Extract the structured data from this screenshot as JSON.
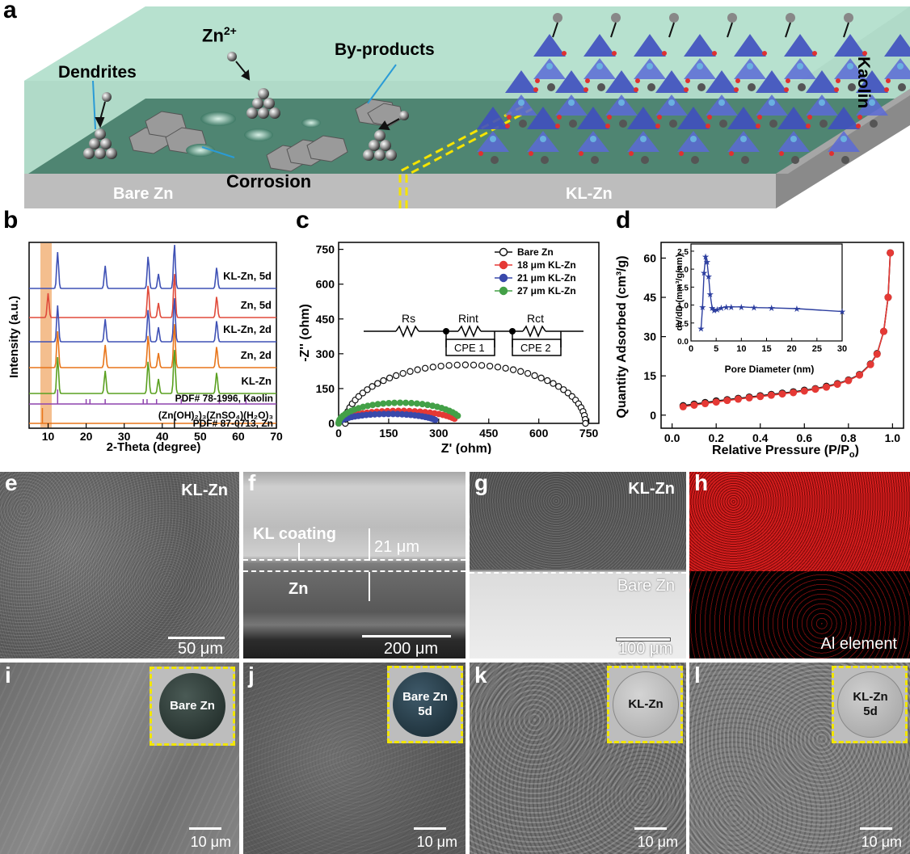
{
  "panel_a": {
    "letter": "a",
    "labels": {
      "zn_ion": "Zn",
      "zn_charge": "2+",
      "dendrites": "Dendrites",
      "byproducts": "By-products",
      "corrosion": "Corrosion",
      "bare_zn": "Bare Zn",
      "kl_zn": "KL-Zn",
      "kaolin": "Kaolin"
    }
  },
  "panel_b": {
    "letter": "b",
    "ylabel": "Intensity (a.u.)",
    "xlabel": "2-Theta (degree)",
    "xticks": [
      "10",
      "20",
      "30",
      "40",
      "50",
      "60",
      "70"
    ],
    "traces": [
      {
        "name": "KL-Zn, 5d",
        "color": "#3f51b5"
      },
      {
        "name": "Zn, 5d",
        "color": "#e04a3a"
      },
      {
        "name": "KL-Zn, 2d",
        "color": "#3f51b5"
      },
      {
        "name": "Zn, 2d",
        "color": "#e8751a"
      },
      {
        "name": "KL-Zn",
        "color": "#5aa020"
      }
    ],
    "refs": [
      {
        "name": "PDF# 78-1996, Kaolin",
        "color": "#8e44ad"
      },
      {
        "name": "(Zn(OH)₂)₃(ZnSO₄)(H₂O)₃",
        "color": "#e8751a"
      },
      {
        "name": "PDF# 87-0713, Zn",
        "color": "#e8751a"
      }
    ]
  },
  "panel_c": {
    "letter": "c",
    "ylabel": "-Z'' (ohm)",
    "xlabel": "Z' (ohm)",
    "xticks": [
      "0",
      "150",
      "300",
      "450",
      "600",
      "750"
    ],
    "yticks": [
      "0",
      "150",
      "300",
      "450",
      "600",
      "750"
    ],
    "legend": [
      "Bare Zn",
      "18 μm KL-Zn",
      "21 μm KL-Zn",
      "27 μm KL-Zn"
    ],
    "circuit": {
      "rs": "Rs",
      "rint": "Rint",
      "rct": "Rct",
      "cpe1": "CPE 1",
      "cpe2": "CPE 2"
    }
  },
  "panel_d": {
    "letter": "d",
    "ylabel": "Quantity Adsorbed (cm³/g)",
    "xlabel": "Relative Pressure (P/P",
    "xlabel_sub": "o",
    "xlabel_end": ")",
    "xticks": [
      "0.0",
      "0.2",
      "0.4",
      "0.6",
      "0.8",
      "1.0"
    ],
    "yticks": [
      "0",
      "15",
      "30",
      "45",
      "60"
    ],
    "inset": {
      "ylabel": "dV/dD (mm³/g/nm)",
      "xlabel": "Pore Diameter (nm)",
      "xticks": [
        "0",
        "5",
        "10",
        "15",
        "20",
        "25",
        "30"
      ],
      "yticks": [
        "0.0",
        "0.5",
        "1.0",
        "1.5",
        "2.0",
        "2.5"
      ]
    }
  },
  "chart_data": [
    {
      "type": "line",
      "panel": "b",
      "xlabel": "2-Theta (degree)",
      "ylabel": "Intensity (a.u.)",
      "xlim": [
        5,
        70
      ],
      "series": [
        {
          "name": "KL-Zn, 5d",
          "peaks": [
            12.5,
            25,
            36.3,
            39,
            43.2,
            54.3
          ]
        },
        {
          "name": "Zn, 5d",
          "peaks": [
            10,
            36.3,
            39,
            43.2,
            54.3
          ]
        },
        {
          "name": "KL-Zn, 2d",
          "peaks": [
            12.5,
            25,
            36.3,
            39,
            43.2,
            54.3
          ]
        },
        {
          "name": "Zn, 2d",
          "peaks": [
            12.5,
            25,
            36.3,
            39,
            43.2,
            54.3
          ]
        },
        {
          "name": "KL-Zn",
          "peaks": [
            12.5,
            25,
            36.3,
            39,
            43.2,
            54.3
          ]
        }
      ]
    },
    {
      "type": "scatter",
      "panel": "c",
      "xlabel": "Z' (ohm)",
      "ylabel": "-Z'' (ohm)",
      "xlim": [
        0,
        780
      ],
      "ylim": [
        0,
        780
      ],
      "series": [
        {
          "name": "Bare Zn",
          "color": "#111111",
          "center": 380,
          "radius": 360,
          "yscale": 0.7,
          "end": 740
        },
        {
          "name": "18 μm KL-Zn",
          "color": "#e53935",
          "center": 180,
          "radius": 180,
          "yscale": 0.3,
          "end": 360
        },
        {
          "name": "21 μm KL-Zn",
          "color": "#3949ab",
          "center": 150,
          "radius": 150,
          "yscale": 0.27,
          "end": 300
        },
        {
          "name": "27 μm KL-Zn",
          "color": "#43a047",
          "center": 185,
          "radius": 185,
          "yscale": 0.48,
          "end": 370
        }
      ]
    },
    {
      "type": "line",
      "panel": "d",
      "xlabel": "Relative Pressure (P/Po)",
      "ylabel": "Quantity Adsorbed (cm³/g)",
      "xlim": [
        -0.05,
        1.05
      ],
      "ylim": [
        -5,
        66
      ],
      "series": [
        {
          "name": "adsorption",
          "color": "#111111",
          "x": [
            0.05,
            0.1,
            0.15,
            0.2,
            0.25,
            0.3,
            0.35,
            0.4,
            0.45,
            0.5,
            0.55,
            0.6,
            0.65,
            0.7,
            0.75,
            0.8,
            0.85,
            0.9,
            0.93,
            0.96,
            0.98,
            0.99
          ],
          "y": [
            3.6,
            4.2,
            4.8,
            5.4,
            5.9,
            6.4,
            6.9,
            7.4,
            7.9,
            8.4,
            8.9,
            9.5,
            10.1,
            11.0,
            12.0,
            13.4,
            15.5,
            19.5,
            23.5,
            32,
            45,
            62
          ]
        },
        {
          "name": "desorption",
          "color": "#e53935",
          "x": [
            0.05,
            0.1,
            0.15,
            0.2,
            0.25,
            0.3,
            0.35,
            0.4,
            0.45,
            0.5,
            0.55,
            0.6,
            0.65,
            0.7,
            0.75,
            0.8,
            0.85,
            0.9,
            0.93,
            0.96,
            0.98,
            0.99
          ],
          "y": [
            3.2,
            3.8,
            4.4,
            5.0,
            5.6,
            6.1,
            6.6,
            7.1,
            7.6,
            8.1,
            8.6,
            9.2,
            9.9,
            10.7,
            11.8,
            13.2,
            15.3,
            19.3,
            23.3,
            32,
            45,
            62
          ]
        }
      ],
      "inset": {
        "xlabel": "Pore Diameter (nm)",
        "ylabel": "dV/dD (mm³/g/nm)",
        "xlim": [
          0,
          30
        ],
        "ylim": [
          0,
          2.7
        ],
        "x": [
          2.0,
          2.3,
          2.6,
          2.9,
          3.2,
          3.5,
          3.8,
          4.2,
          4.6,
          5.2,
          6,
          7,
          8,
          10,
          12.5,
          16,
          21,
          30
        ],
        "y": [
          0.35,
          0.95,
          1.9,
          2.35,
          2.2,
          1.8,
          1.3,
          0.92,
          0.85,
          0.88,
          0.92,
          0.95,
          0.95,
          0.95,
          0.93,
          0.92,
          0.9,
          0.82
        ]
      }
    }
  ],
  "panel_e": {
    "letter": "e",
    "tag": "KL-Zn",
    "scale": "50 μm"
  },
  "panel_f": {
    "letter": "f",
    "coating": "KL coating",
    "thickness": "21 μm",
    "zn": "Zn",
    "scale": "200 μm"
  },
  "panel_g": {
    "letter": "g",
    "tag": "KL-Zn",
    "lower": "Bare Zn",
    "scale": "100 μm"
  },
  "panel_h": {
    "letter": "h",
    "tag": "Al element"
  },
  "panel_i": {
    "letter": "i",
    "disc": "Bare Zn",
    "scale": "10 μm"
  },
  "panel_j": {
    "letter": "j",
    "disc1": "Bare Zn",
    "disc2": "5d",
    "scale": "10 μm"
  },
  "panel_k": {
    "letter": "k",
    "disc": "KL-Zn",
    "scale": "10 μm"
  },
  "panel_l": {
    "letter": "l",
    "disc1": "KL-Zn",
    "disc2": "5d",
    "scale": "10 μm"
  }
}
